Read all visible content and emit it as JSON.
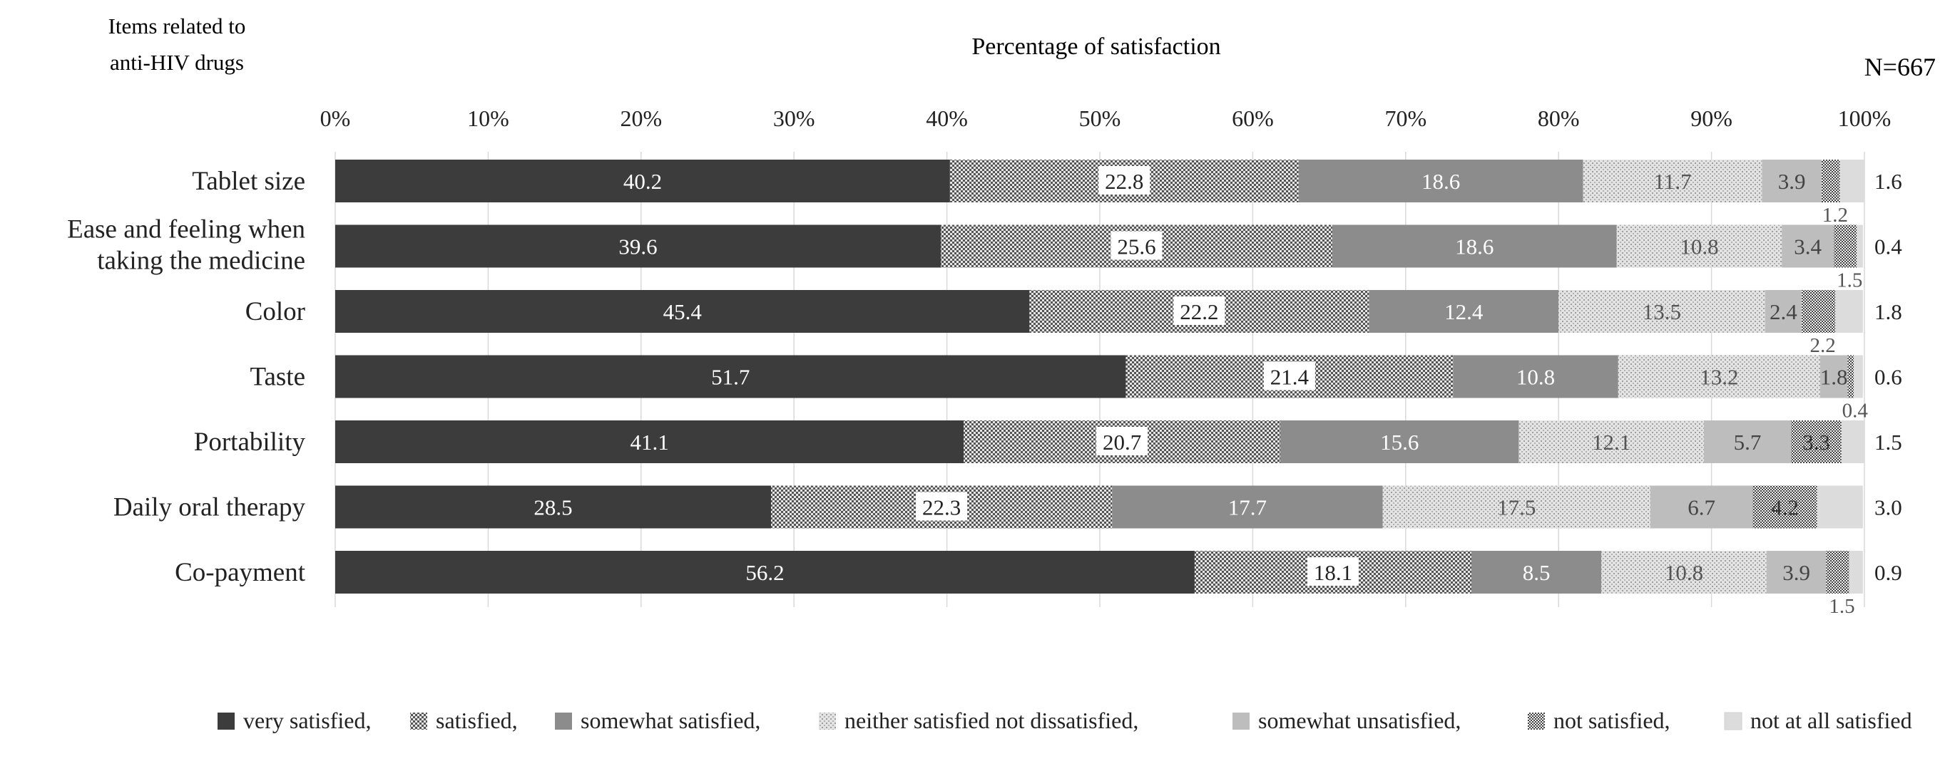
{
  "chart_data": {
    "type": "bar",
    "orientation": "horizontal",
    "stacked": "percent",
    "title": "Percentage of satisfaction",
    "category_axis_title": "Items related to anti-HIV drugs",
    "category_axis_title_lines": [
      "Items related to",
      "anti-HIV drugs"
    ],
    "annotation": "N=667",
    "x_ticks": [
      "0%",
      "10%",
      "20%",
      "30%",
      "40%",
      "50%",
      "60%",
      "70%",
      "80%",
      "90%",
      "100%"
    ],
    "xlim": [
      0,
      100
    ],
    "gridlines": true,
    "legend_position": "bottom",
    "categories": [
      {
        "label": "Tablet size",
        "lines": [
          "Tablet size"
        ]
      },
      {
        "label": "Ease and feeling when taking the medicine",
        "lines": [
          "Ease and feeling when",
          "taking the medicine"
        ]
      },
      {
        "label": "Color",
        "lines": [
          "Color"
        ]
      },
      {
        "label": "Taste",
        "lines": [
          "Taste"
        ]
      },
      {
        "label": "Portability",
        "lines": [
          "Portability"
        ]
      },
      {
        "label": "Daily oral therapy",
        "lines": [
          "Daily oral therapy"
        ]
      },
      {
        "label": "Co-payment",
        "lines": [
          "Co-payment"
        ]
      }
    ],
    "series": [
      {
        "name": "very satisfied,",
        "legend": "very satisfied,",
        "fill": "#3c3c3c",
        "pattern": "solid",
        "label_color": "#ffffff",
        "values": [
          40.2,
          39.6,
          45.4,
          51.7,
          41.1,
          28.5,
          56.2
        ],
        "labels": [
          "40.2",
          "39.6",
          "45.4",
          "51.7",
          "41.1",
          "28.5",
          "56.2"
        ]
      },
      {
        "name": "satisfied,",
        "legend": "satisfied,",
        "fill": "#9a9a9a",
        "pattern": "checker",
        "label_color": "#222222",
        "values": [
          22.8,
          25.6,
          22.2,
          21.4,
          20.7,
          22.3,
          18.1
        ],
        "labels": [
          "22.8",
          "25.6",
          "22.2",
          "21.4",
          "20.7",
          "22.3",
          "18.1"
        ]
      },
      {
        "name": "somewhat satisfied,",
        "legend": "somewhat satisfied,",
        "fill": "#8c8c8c",
        "pattern": "solid",
        "label_color": "#ffffff",
        "values": [
          18.6,
          18.6,
          12.4,
          10.8,
          15.6,
          17.7,
          8.5
        ],
        "labels": [
          "18.6",
          "18.6",
          "12.4",
          "10.8",
          "15.6",
          "17.7",
          "8.5"
        ]
      },
      {
        "name": "neither satisfied not dissatisfied,",
        "legend": "neither satisfied not dissatisfied,",
        "fill": "#d6d6d6",
        "pattern": "dots",
        "label_color": "#555555",
        "values": [
          11.7,
          10.8,
          13.5,
          13.2,
          12.1,
          17.5,
          10.8
        ],
        "labels": [
          "11.7",
          "10.8",
          "13.5",
          "13.2",
          "12.1",
          "17.5",
          "10.8"
        ]
      },
      {
        "name": "somewhat unsatisfied,",
        "legend": "somewhat unsatisfied,",
        "fill": "#bdbdbd",
        "pattern": "solid",
        "label_color": "#444444",
        "values": [
          3.9,
          3.4,
          2.4,
          1.8,
          5.7,
          6.7,
          3.9
        ],
        "labels": [
          "3.9",
          "3.4",
          "2.4",
          "1.8",
          "5.7",
          "6.7",
          "3.9"
        ]
      },
      {
        "name": "not satisfied,",
        "legend": "not satisfied,",
        "fill": "#c8c8c8",
        "pattern": "fine",
        "label_color": "#333333",
        "values": [
          1.2,
          1.5,
          2.2,
          0.4,
          3.3,
          4.2,
          1.5
        ],
        "labels": [
          "1.2",
          "1.5",
          "2.2",
          "0.4",
          "3.3",
          "4.2",
          "1.5"
        ]
      },
      {
        "name": "not at all satisfied",
        "legend": "not at all satisfied",
        "fill": "#dcdcdc",
        "pattern": "solid",
        "label_color": "#222222",
        "values": [
          1.6,
          0.4,
          1.8,
          0.6,
          1.5,
          3.0,
          0.9
        ],
        "labels": [
          "1.6",
          "0.4",
          "1.8",
          "0.6",
          "1.5",
          "3.0",
          "0.9"
        ]
      }
    ]
  }
}
